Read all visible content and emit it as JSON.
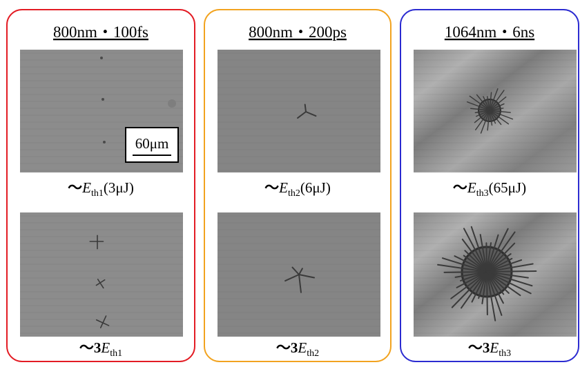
{
  "panels": [
    {
      "title": "800nm・100fs",
      "images": [
        {
          "caption": {
            "prefix": "～",
            "symbol": "E",
            "subscript": "th1",
            "suffix": "(3μJ)"
          }
        },
        {
          "caption": {
            "prefix": "～3",
            "symbol": "E",
            "subscript": "th1"
          }
        }
      ]
    },
    {
      "title": "800nm・200ps",
      "images": [
        {
          "caption": {
            "prefix": "～",
            "symbol": "E",
            "subscript": "th2",
            "suffix": "(6μJ)"
          }
        },
        {
          "caption": {
            "prefix": "～3",
            "symbol": "E",
            "subscript": "th2"
          }
        }
      ]
    },
    {
      "title": "1064nm・6ns",
      "images": [
        {
          "caption": {
            "prefix": "～",
            "symbol": "E",
            "subscript": "th3",
            "suffix": "(65μJ)"
          }
        },
        {
          "caption": {
            "prefix": "～3",
            "symbol": "E",
            "subscript": "th3"
          }
        }
      ]
    }
  ],
  "scale_bar": "60μm"
}
